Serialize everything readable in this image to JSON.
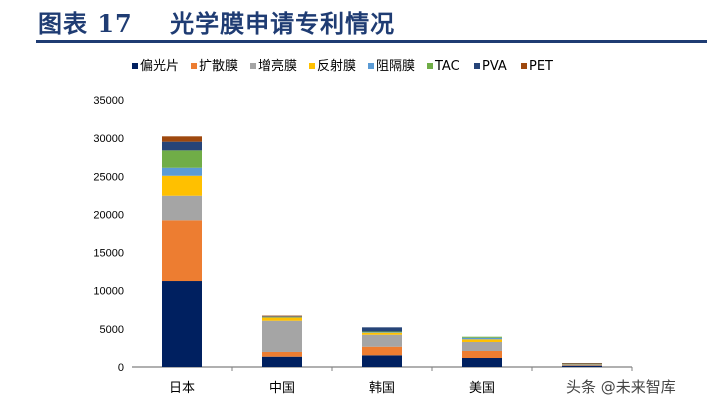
{
  "title": "图表 17    光学膜申请专利情况",
  "watermark": "头条 @未来智库",
  "chart_data": {
    "type": "bar",
    "stacked": true,
    "categories": [
      "日本",
      "中国",
      "韩国",
      "美国",
      ""
    ],
    "ylim": [
      0,
      35000
    ],
    "yticks": [
      0,
      5000,
      10000,
      15000,
      20000,
      25000,
      30000,
      35000
    ],
    "grid": false,
    "legend": "top",
    "series": [
      {
        "name": "偏光片",
        "color": "#002060",
        "values": [
          11270,
          1350,
          1530,
          1180,
          200
        ]
      },
      {
        "name": "扩散膜",
        "color": "#ed7d31",
        "values": [
          7960,
          620,
          1130,
          920,
          20
        ]
      },
      {
        "name": "增亮膜",
        "color": "#a5a5a5",
        "values": [
          3220,
          4100,
          1570,
          1180,
          180
        ]
      },
      {
        "name": "反射膜",
        "color": "#ffc000",
        "values": [
          2620,
          440,
          270,
          350,
          20
        ]
      },
      {
        "name": "阻隔膜",
        "color": "#5b9bd5",
        "values": [
          1050,
          40,
          50,
          200,
          20
        ]
      },
      {
        "name": "TAC",
        "color": "#70ad47",
        "values": [
          2280,
          40,
          100,
          140,
          10
        ]
      },
      {
        "name": "PVA",
        "color": "#264478",
        "values": [
          1140,
          60,
          550,
          0,
          40
        ]
      },
      {
        "name": "PET",
        "color": "#9e480e",
        "values": [
          700,
          90,
          0,
          0,
          10
        ]
      }
    ]
  }
}
